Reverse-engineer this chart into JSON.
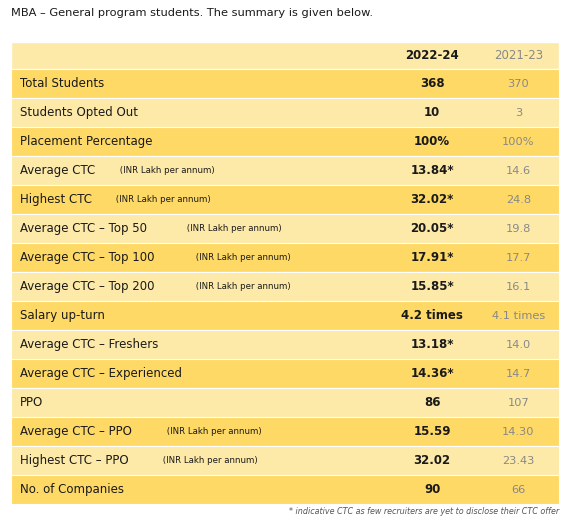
{
  "title": "MBA – General program students. The summary is given below.",
  "col_headers": [
    "",
    "2022-24",
    "2021-23"
  ],
  "rows": [
    {
      "label": "Total Students",
      "label_small": "",
      "val1": "368",
      "val2": "370",
      "val1_bold": true,
      "highlight": true
    },
    {
      "label": "Students Opted Out",
      "label_small": "",
      "val1": "10",
      "val2": "3",
      "val1_bold": true,
      "highlight": false
    },
    {
      "label": "Placement Percentage",
      "label_small": "",
      "val1": "100%",
      "val2": "100%",
      "val1_bold": true,
      "highlight": true
    },
    {
      "label": "Average CTC",
      "label_small": " (INR Lakh per annum)",
      "val1": "13.84*",
      "val2": "14.6",
      "val1_bold": true,
      "highlight": false
    },
    {
      "label": "Highest CTC",
      "label_small": " (INR Lakh per annum)",
      "val1": "32.02*",
      "val2": "24.8",
      "val1_bold": true,
      "highlight": true
    },
    {
      "label": "Average CTC – Top 50",
      "label_small": " (INR Lakh per annum)",
      "val1": "20.05*",
      "val2": "19.8",
      "val1_bold": true,
      "highlight": false
    },
    {
      "label": "Average CTC – Top 100",
      "label_small": " (INR Lakh per annum)",
      "val1": "17.91*",
      "val2": "17.7",
      "val1_bold": true,
      "highlight": true
    },
    {
      "label": "Average CTC – Top 200",
      "label_small": " (INR Lakh per annum)",
      "val1": "15.85*",
      "val2": "16.1",
      "val1_bold": true,
      "highlight": false
    },
    {
      "label": "Salary up-turn",
      "label_small": "",
      "val1": "4.2 times",
      "val2": "4.1 times",
      "val1_bold": true,
      "highlight": true
    },
    {
      "label": "Average CTC – Freshers",
      "label_small": "",
      "val1": "13.18*",
      "val2": "14.0",
      "val1_bold": true,
      "highlight": false
    },
    {
      "label": "Average CTC – Experienced",
      "label_small": "",
      "val1": "14.36*",
      "val2": "14.7",
      "val1_bold": true,
      "highlight": true
    },
    {
      "label": "PPO",
      "label_small": "",
      "val1": "86",
      "val2": "107",
      "val1_bold": true,
      "highlight": false
    },
    {
      "label": "Average CTC – PPO",
      "label_small": " (INR Lakh per annum)",
      "val1": "15.59",
      "val2": "14.30",
      "val1_bold": true,
      "highlight": true
    },
    {
      "label": "Highest CTC – PPO",
      "label_small": " (INR Lakh per annum)",
      "val1": "32.02",
      "val2": "23.43",
      "val1_bold": true,
      "highlight": false
    },
    {
      "label": "No. of Companies",
      "label_small": "",
      "val1": "90",
      "val2": "66",
      "val1_bold": true,
      "highlight": true
    }
  ],
  "footnote": "* indicative CTC as few recruiters are yet to disclose their CTC offer",
  "bg_color": "#ffffff",
  "highlight_color": "#FFD966",
  "normal_color": "#FDEAA8",
  "header_bg": "#FDEAA8",
  "text_color_dark": "#1a1a1a",
  "header_year2_color": "#888888",
  "title_fontsize": 8.2,
  "label_fontsize": 8.5,
  "label_small_fontsize": 6.2,
  "val_fontsize": 8.5,
  "header_fontsize": 8.5
}
